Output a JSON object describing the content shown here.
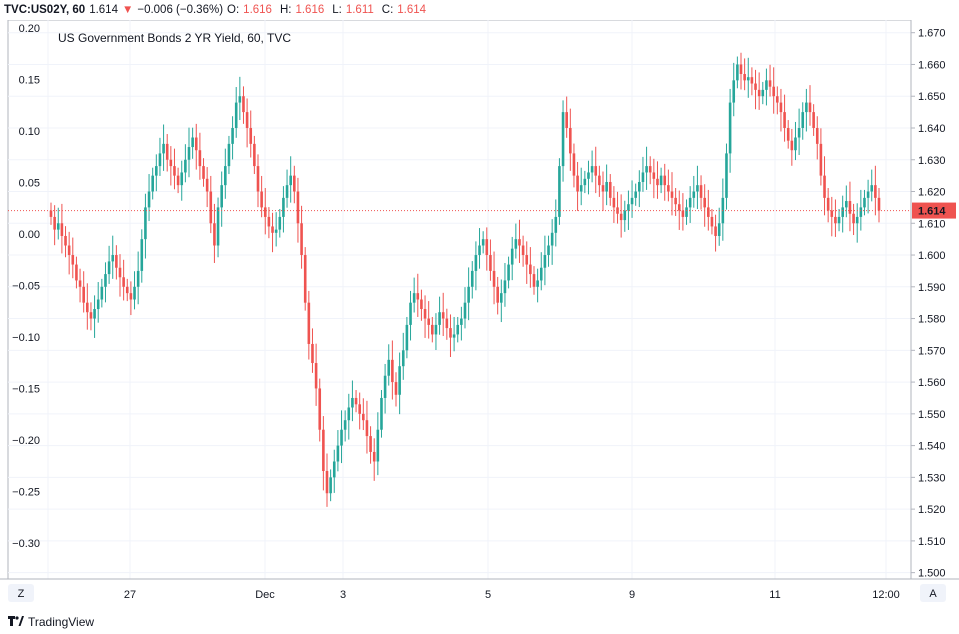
{
  "header": {
    "symbol": "TVC:US02Y, 60",
    "last": "1.614",
    "arrow": "▼",
    "change": "−0.006 (−0.36%)",
    "open_label": "O:",
    "open": "1.616",
    "high_label": "H:",
    "high": "1.616",
    "low_label": "L:",
    "low": "1.611",
    "close_label": "C:",
    "close": "1.614"
  },
  "footer": {
    "brand": "TradingView",
    "left_btn": "Z",
    "right_btn": "A"
  },
  "colors": {
    "up": "#26a69a",
    "down": "#ef5350",
    "grid": "#f0f3fa",
    "axis": "#b2b5be",
    "price_line": "#ef5350"
  },
  "chart_data": {
    "type": "candlestick",
    "title": "US Government Bonds 2 YR Yield, 60, TVC",
    "left_axis": {
      "ticks": [
        "0.20",
        "0.15",
        "0.10",
        "0.05",
        "0.00",
        "−0.05",
        "−0.10",
        "−0.15",
        "−0.20",
        "−0.25",
        "−0.30"
      ],
      "values": [
        0.2,
        0.15,
        0.1,
        0.05,
        0.0,
        -0.05,
        -0.1,
        -0.15,
        -0.2,
        -0.25,
        -0.3
      ]
    },
    "right_axis": {
      "ticks": [
        "1.670",
        "1.660",
        "1.650",
        "1.640",
        "1.630",
        "1.620",
        "1.610",
        "1.600",
        "1.590",
        "1.580",
        "1.570",
        "1.560",
        "1.550",
        "1.540",
        "1.530",
        "1.520",
        "1.510",
        "1.500"
      ],
      "values": [
        1.67,
        1.66,
        1.65,
        1.64,
        1.63,
        1.62,
        1.61,
        1.6,
        1.59,
        1.58,
        1.57,
        1.56,
        1.55,
        1.54,
        1.53,
        1.52,
        1.51,
        1.5
      ],
      "ylim": [
        1.498,
        1.674
      ]
    },
    "x_axis": {
      "labels": [
        "27",
        "Dec",
        "3",
        "5",
        "9",
        "11",
        "12:00"
      ],
      "positions": [
        0.15,
        0.3,
        0.48,
        0.66,
        0.84,
        1.0,
        1.16
      ]
    },
    "last_price": 1.614,
    "last_price_label": "1.614",
    "grid": true,
    "price_path": [
      1.612,
      1.608,
      1.61,
      1.606,
      1.603,
      1.6,
      1.597,
      1.592,
      1.59,
      1.585,
      1.582,
      1.58,
      1.583,
      1.586,
      1.59,
      1.594,
      1.598,
      1.6,
      1.596,
      1.593,
      1.59,
      1.588,
      1.586,
      1.59,
      1.595,
      1.605,
      1.615,
      1.62,
      1.625,
      1.628,
      1.632,
      1.635,
      1.63,
      1.628,
      1.625,
      1.622,
      1.626,
      1.63,
      1.634,
      1.637,
      1.633,
      1.628,
      1.624,
      1.62,
      1.61,
      1.603,
      1.615,
      1.622,
      1.628,
      1.635,
      1.64,
      1.648,
      1.65,
      1.645,
      1.64,
      1.635,
      1.628,
      1.62,
      1.615,
      1.612,
      1.609,
      1.607,
      1.608,
      1.612,
      1.618,
      1.622,
      1.625,
      1.62,
      1.61,
      1.6,
      1.585,
      1.572,
      1.566,
      1.558,
      1.545,
      1.532,
      1.525,
      1.53,
      1.535,
      1.54,
      1.545,
      1.548,
      1.552,
      1.555,
      1.553,
      1.55,
      1.548,
      1.543,
      1.538,
      1.535,
      1.545,
      1.555,
      1.562,
      1.567,
      1.56,
      1.556,
      1.565,
      1.57,
      1.578,
      1.585,
      1.588,
      1.586,
      1.583,
      1.58,
      1.578,
      1.575,
      1.578,
      1.582,
      1.58,
      1.577,
      1.574,
      1.575,
      1.578,
      1.58,
      1.585,
      1.59,
      1.595,
      1.6,
      1.603,
      1.605,
      1.6,
      1.595,
      1.59,
      1.585,
      1.588,
      1.592,
      1.597,
      1.602,
      1.605,
      1.603,
      1.6,
      1.597,
      1.594,
      1.59,
      1.592,
      1.596,
      1.6,
      1.603,
      1.607,
      1.612,
      1.628,
      1.645,
      1.64,
      1.632,
      1.625,
      1.62,
      1.622,
      1.624,
      1.626,
      1.628,
      1.625,
      1.622,
      1.62,
      1.623,
      1.618,
      1.615,
      1.613,
      1.611,
      1.614,
      1.616,
      1.618,
      1.62,
      1.623,
      1.626,
      1.628,
      1.626,
      1.624,
      1.622,
      1.625,
      1.622,
      1.62,
      1.618,
      1.616,
      1.614,
      1.612,
      1.615,
      1.618,
      1.62,
      1.622,
      1.618,
      1.615,
      1.612,
      1.609,
      1.606,
      1.61,
      1.618,
      1.632,
      1.648,
      1.655,
      1.66,
      1.657,
      1.655,
      1.656,
      1.654,
      1.652,
      1.65,
      1.652,
      1.655,
      1.653,
      1.65,
      1.648,
      1.645,
      1.64,
      1.636,
      1.633,
      1.637,
      1.64,
      1.645,
      1.648,
      1.645,
      1.64,
      1.635,
      1.625,
      1.618,
      1.614,
      1.612,
      1.61,
      1.612,
      1.615,
      1.617,
      1.613,
      1.61,
      1.612,
      1.615,
      1.618,
      1.62,
      1.622,
      1.618,
      1.614
    ]
  }
}
